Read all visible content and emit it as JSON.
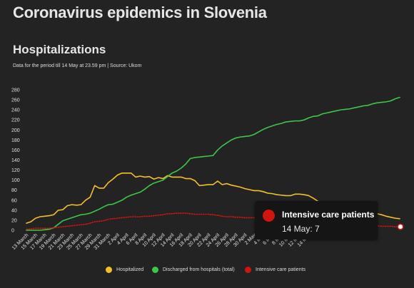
{
  "page_title": "Coronavirus epidemics in Slovenia",
  "chart_data": {
    "type": "line",
    "title": "Hospitalizations",
    "subtitle": "Data for the period till 14 May at 23.59 pm | Source: Ukom",
    "xlabel": "",
    "ylabel": "",
    "ylim": [
      0,
      280
    ],
    "yticks": [
      0,
      20,
      40,
      60,
      80,
      100,
      120,
      140,
      160,
      180,
      200,
      220,
      240,
      260,
      280
    ],
    "grid": false,
    "legend_position": "bottom",
    "x_tick_labels": [
      "13 March",
      "15 March",
      "17 March",
      "19 March",
      "21 March",
      "23 March",
      "25 March",
      "27 March",
      "29 March",
      "31 March",
      "2 April",
      "4 April",
      "6 April",
      "8 April",
      "10 April",
      "12 April",
      "14 April",
      "16 April",
      "18 April",
      "20 April",
      "22 April",
      "24 April",
      "26 April",
      "28 April",
      "30 April",
      "2 May",
      "4 May",
      "6 May",
      "8 May",
      "10 May",
      "12 May",
      "14 May"
    ],
    "x_start": "13 March",
    "series": [
      {
        "name": "Hospitalized",
        "color": "#f5bf2a",
        "style": "solid",
        "values": [
          14,
          17,
          24,
          27,
          28,
          29,
          31,
          40,
          41,
          49,
          51,
          50,
          51,
          60,
          66,
          89,
          84,
          84,
          95,
          102,
          110,
          114,
          114,
          114,
          106,
          108,
          106,
          107,
          102,
          105,
          103,
          109,
          106,
          106,
          106,
          103,
          103,
          99,
          89,
          90,
          91,
          91,
          98,
          91,
          93,
          90,
          88,
          86,
          83,
          81,
          79,
          79,
          77,
          74,
          73,
          71,
          70,
          69,
          69,
          72,
          72,
          71,
          69,
          64,
          58,
          51,
          49,
          50,
          49,
          47,
          45,
          44,
          42,
          42,
          40,
          38,
          36,
          33,
          31,
          28,
          26,
          24,
          23
        ]
      },
      {
        "name": "Discharged from hospitals (total)",
        "color": "#3cc64a",
        "style": "solid",
        "values": [
          0,
          0,
          0,
          0,
          1,
          2,
          5,
          12,
          19,
          22,
          25,
          28,
          31,
          32,
          34,
          38,
          42,
          47,
          51,
          52,
          56,
          60,
          66,
          70,
          73,
          76,
          82,
          89,
          94,
          97,
          100,
          107,
          114,
          118,
          124,
          132,
          143,
          145,
          146,
          147,
          148,
          149,
          160,
          168,
          174,
          180,
          184,
          186,
          187,
          188,
          191,
          196,
          201,
          205,
          208,
          211,
          213,
          216,
          217,
          218,
          218,
          220,
          224,
          227,
          228,
          232,
          234,
          236,
          238,
          240,
          241,
          242,
          244,
          246,
          248,
          249,
          252,
          254,
          255,
          256,
          258,
          262,
          265
        ]
      },
      {
        "name": "Intensive care patients",
        "color": "#d0150e",
        "style": "dotted",
        "values": [
          2,
          3,
          4,
          4,
          4,
          4,
          5,
          6,
          7,
          8,
          9,
          10,
          11,
          12,
          14,
          17,
          18,
          19,
          22,
          23,
          24,
          25,
          26,
          27,
          27,
          27,
          28,
          28,
          29,
          30,
          31,
          33,
          33,
          34,
          34,
          34,
          33,
          32,
          32,
          32,
          32,
          31,
          30,
          28,
          27,
          27,
          26,
          26,
          25,
          25,
          25,
          24,
          24,
          24,
          23,
          23,
          23,
          22,
          22,
          22,
          21,
          21,
          20,
          19,
          19,
          18,
          18,
          17,
          16,
          15,
          14,
          13,
          12,
          11,
          11,
          10,
          9,
          9,
          8,
          8,
          8,
          7,
          7
        ]
      }
    ]
  },
  "tooltip": {
    "series": "Intensive care patients",
    "label": "14 May: 7",
    "color": "#d0150e"
  }
}
